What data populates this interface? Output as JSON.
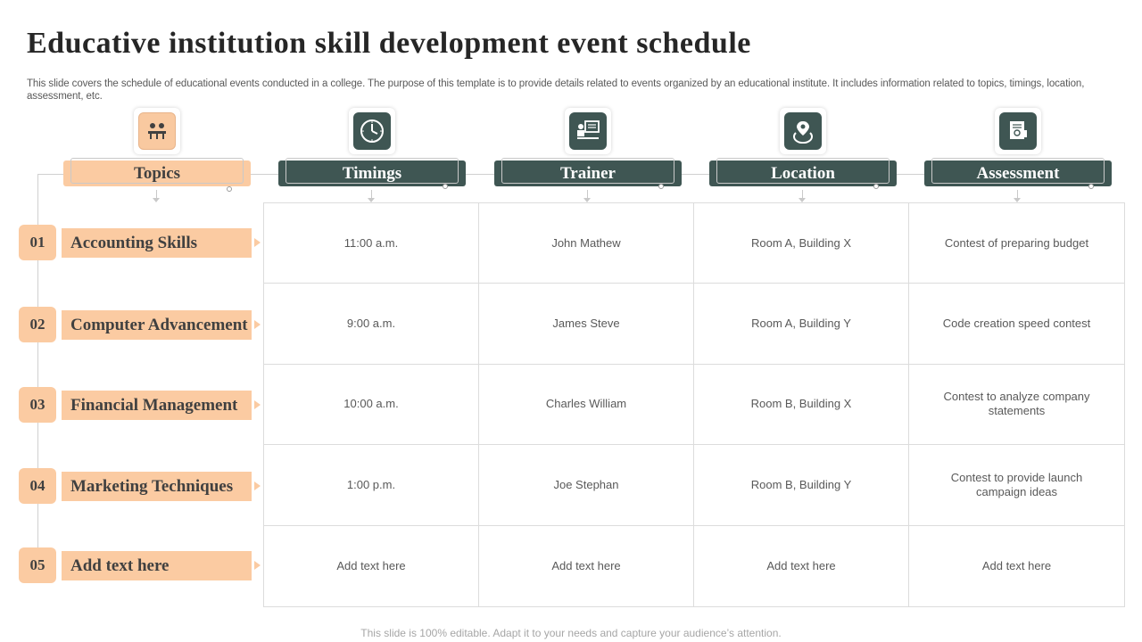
{
  "title": "Educative institution skill development event schedule",
  "subtitle": "This slide covers the schedule of educational events conducted in a college. The purpose of this template is to provide details related to events organized by an educational institute. It includes information related to topics, timings, location, assessment, etc.",
  "headers": [
    "Topics",
    "Timings",
    "Trainer",
    "Location",
    "Assessment"
  ],
  "icons": [
    "meeting-table-icon",
    "clock-icon",
    "presentation-board-icon",
    "location-pin-icon",
    "certificate-icon"
  ],
  "rows": [
    {
      "num": "01",
      "topic": "Accounting Skills",
      "timing": "11:00 a.m.",
      "trainer": "John Mathew",
      "location": "Room A, Building X",
      "assessment": "Contest of preparing  budget"
    },
    {
      "num": "02",
      "topic": "Computer Advancement",
      "timing": "9:00 a.m.",
      "trainer": "James Steve",
      "location": "Room A, Building Y",
      "assessment": "Code creation speed contest"
    },
    {
      "num": "03",
      "topic": "Financial Management",
      "timing": "10:00 a.m.",
      "trainer": "Charles William",
      "location": "Room B, Building X",
      "assessment": "Contest to analyze company statements"
    },
    {
      "num": "04",
      "topic": "Marketing Techniques",
      "timing": "1:00 p.m.",
      "trainer": "Joe Stephan",
      "location": "Room B, Building Y",
      "assessment": "Contest to provide  launch campaign ideas"
    },
    {
      "num": "05",
      "topic": "Add text here",
      "timing": "Add text here",
      "trainer": "Add text here",
      "location": "Add text here",
      "assessment": "Add text here"
    }
  ],
  "footer": "This slide is 100% editable. Adapt it to your needs and capture your audience’s attention.",
  "colors": {
    "dark_teal": "#3f5653",
    "peach": "#fbcba2"
  }
}
